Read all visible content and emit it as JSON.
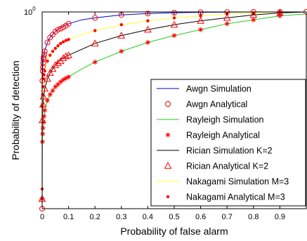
{
  "chart_data": {
    "type": "line",
    "xlabel": "Probability of false alarm",
    "ylabel": "Probability of detection",
    "xlim": [
      0,
      1
    ],
    "ylim": [
      0,
      1
    ],
    "x_ticks": [
      "0",
      "0.1",
      "0.2",
      "0.3",
      "0.4",
      "0.5",
      "0.6",
      "0.7",
      "0.8",
      "0.9"
    ],
    "x_tick_values": [
      0,
      0.1,
      0.2,
      0.3,
      0.4,
      0.5,
      0.6,
      0.7,
      0.8,
      0.9
    ],
    "y_top_label_base": "10",
    "y_top_label_exp": "0",
    "grid": false,
    "legend_position": "bottom-right",
    "series": [
      {
        "name": "Awgn Simulation",
        "style": "line",
        "color": "#0000cc",
        "x": [
          0,
          0.0005,
          0.002,
          0.005,
          0.01,
          0.02,
          0.03,
          0.05,
          0.07,
          0.1,
          0.15,
          0.2,
          0.3,
          0.4,
          0.5,
          0.6,
          0.7,
          0.8,
          0.9,
          1.0
        ],
        "y": [
          0,
          0.62,
          0.72,
          0.77,
          0.805,
          0.845,
          0.87,
          0.9,
          0.92,
          0.94,
          0.96,
          0.97,
          0.985,
          0.992,
          0.996,
          0.998,
          0.999,
          1.0,
          1.0,
          1.0
        ]
      },
      {
        "name": "Awgn Analytical",
        "style": "marker",
        "marker": "circle",
        "color": "#ff0000",
        "x": [
          0,
          0.001,
          0.002,
          0.003,
          0.004,
          0.005,
          0.006,
          0.008,
          0.01,
          0.02,
          0.03,
          0.04,
          0.05,
          0.06,
          0.07,
          0.08,
          0.09,
          0.1,
          0.2,
          0.3,
          0.4,
          0.5,
          0.6,
          0.7,
          0.8,
          0.9,
          1.0
        ],
        "y": [
          0,
          0.65,
          0.7,
          0.72,
          0.74,
          0.76,
          0.77,
          0.785,
          0.8,
          0.845,
          0.87,
          0.885,
          0.9,
          0.91,
          0.915,
          0.922,
          0.93,
          0.94,
          0.97,
          0.985,
          0.992,
          0.996,
          0.998,
          0.999,
          1.0,
          1.0,
          1.0
        ]
      },
      {
        "name": "Rayleigh Simulation",
        "style": "line",
        "color": "#22cc22",
        "x": [
          0,
          0.0005,
          0.002,
          0.005,
          0.01,
          0.02,
          0.03,
          0.05,
          0.07,
          0.1,
          0.15,
          0.2,
          0.3,
          0.4,
          0.5,
          0.6,
          0.7,
          0.8,
          0.9,
          1.0
        ],
        "y": [
          0,
          0.3,
          0.38,
          0.44,
          0.5,
          0.55,
          0.58,
          0.62,
          0.645,
          0.67,
          0.71,
          0.745,
          0.8,
          0.845,
          0.88,
          0.91,
          0.94,
          0.96,
          0.98,
          0.99
        ]
      },
      {
        "name": "Rayleigh Analytical",
        "style": "marker",
        "marker": "asterisk",
        "color": "#ff0000",
        "x": [
          0,
          0.001,
          0.002,
          0.003,
          0.005,
          0.007,
          0.01,
          0.02,
          0.03,
          0.04,
          0.05,
          0.06,
          0.07,
          0.08,
          0.09,
          0.1,
          0.2,
          0.3,
          0.4,
          0.5,
          0.6,
          0.7,
          0.8,
          0.9
        ],
        "y": [
          0.05,
          0.34,
          0.38,
          0.41,
          0.44,
          0.47,
          0.5,
          0.55,
          0.58,
          0.6,
          0.62,
          0.632,
          0.645,
          0.655,
          0.663,
          0.67,
          0.745,
          0.8,
          0.845,
          0.88,
          0.91,
          0.94,
          0.96,
          0.98
        ]
      },
      {
        "name": "Rician Simulation K=2",
        "style": "line",
        "color": "#000000",
        "x": [
          0,
          0.0005,
          0.002,
          0.005,
          0.01,
          0.02,
          0.03,
          0.05,
          0.07,
          0.1,
          0.15,
          0.2,
          0.3,
          0.4,
          0.5,
          0.6,
          0.7,
          0.8,
          0.9,
          1.0
        ],
        "y": [
          0,
          0.42,
          0.5,
          0.56,
          0.61,
          0.66,
          0.69,
          0.73,
          0.76,
          0.78,
          0.81,
          0.84,
          0.88,
          0.91,
          0.935,
          0.955,
          0.97,
          0.985,
          0.995,
          1.0
        ]
      },
      {
        "name": "Rician Analytical K=2",
        "style": "marker",
        "marker": "triangle",
        "color": "#ff0000",
        "x": [
          0,
          0.001,
          0.003,
          0.005,
          0.01,
          0.02,
          0.03,
          0.04,
          0.05,
          0.06,
          0.07,
          0.08,
          0.09,
          0.1,
          0.2,
          0.3,
          0.4,
          0.5,
          0.6,
          0.7,
          0.8,
          0.9
        ],
        "y": [
          0.05,
          0.45,
          0.53,
          0.57,
          0.61,
          0.66,
          0.69,
          0.71,
          0.73,
          0.74,
          0.75,
          0.765,
          0.775,
          0.78,
          0.84,
          0.88,
          0.91,
          0.935,
          0.955,
          0.97,
          0.985,
          0.995
        ]
      },
      {
        "name": "Nakagami Simulation M=3",
        "style": "line",
        "color": "#ffff33",
        "x": [
          0,
          0.0005,
          0.002,
          0.005,
          0.01,
          0.02,
          0.03,
          0.05,
          0.07,
          0.1,
          0.15,
          0.2,
          0.3,
          0.4,
          0.5,
          0.6,
          0.7,
          0.8,
          0.9,
          1.0
        ],
        "y": [
          0,
          0.5,
          0.6,
          0.66,
          0.7,
          0.75,
          0.78,
          0.815,
          0.84,
          0.86,
          0.885,
          0.905,
          0.935,
          0.955,
          0.97,
          0.98,
          0.99,
          0.995,
          1.0,
          1.0
        ]
      },
      {
        "name": "Nakagami Analytical M=3",
        "style": "marker",
        "marker": "dot",
        "color": "#ff0000",
        "x": [
          0,
          0.001,
          0.002,
          0.003,
          0.005,
          0.007,
          0.01,
          0.02,
          0.03,
          0.04,
          0.05,
          0.06,
          0.07,
          0.08,
          0.09,
          0.1,
          0.2,
          0.3,
          0.4,
          0.5,
          0.6,
          0.7,
          0.8,
          0.9
        ],
        "y": [
          0.1,
          0.52,
          0.58,
          0.62,
          0.66,
          0.68,
          0.7,
          0.75,
          0.78,
          0.8,
          0.815,
          0.828,
          0.84,
          0.848,
          0.855,
          0.86,
          0.905,
          0.935,
          0.955,
          0.97,
          0.98,
          0.99,
          0.995,
          1.0
        ]
      }
    ]
  }
}
